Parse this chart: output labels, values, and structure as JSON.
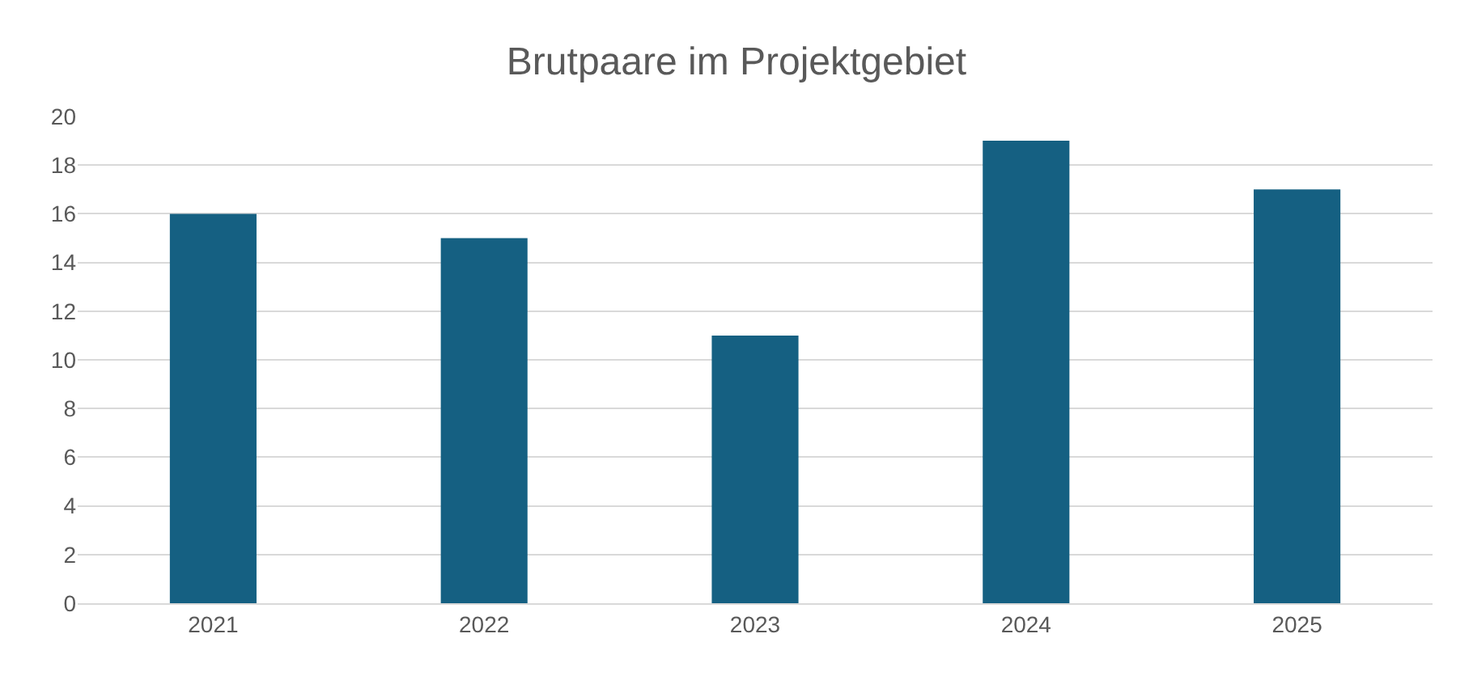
{
  "chart_data": {
    "type": "bar",
    "title": "Brutpaare im Projektgebiet",
    "categories": [
      "2021",
      "2022",
      "2023",
      "2024",
      "2025"
    ],
    "values": [
      16,
      15,
      11,
      19,
      17
    ],
    "color": "#156082",
    "ylim": [
      0,
      20
    ],
    "yticks": [
      0,
      2,
      4,
      6,
      8,
      10,
      12,
      14,
      16,
      18,
      20
    ],
    "grid": "y"
  }
}
